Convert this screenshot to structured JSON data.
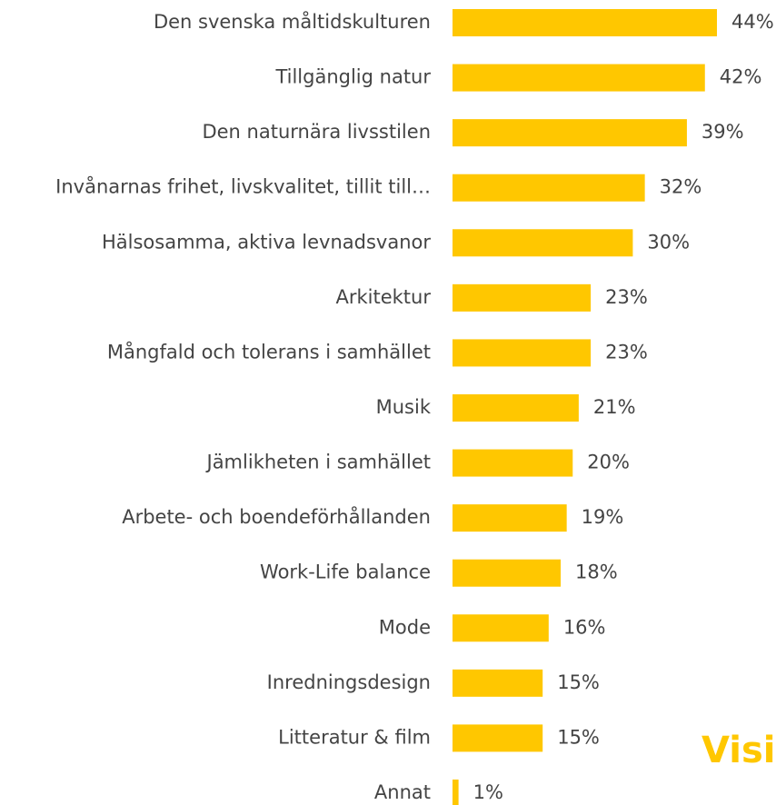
{
  "chart_data": {
    "type": "bar",
    "orientation": "horizontal",
    "categories": [
      "Den svenska måltidskulturen",
      "Tillgänglig natur",
      "Den naturnära livsstilen",
      "Invånarnas frihet, livskvalitet, tillit till…",
      "Hälsosamma, aktiva levnadsvanor",
      "Arkitektur",
      "Mångfald och tolerans i samhället",
      "Musik",
      "Jämlikheten i samhället",
      "Arbete- och boendeförhållanden",
      "Work-Life balance",
      "Mode",
      "Inredningsdesign",
      "Litteratur & film",
      "Annat"
    ],
    "values": [
      44,
      42,
      39,
      32,
      30,
      23,
      23,
      21,
      20,
      19,
      18,
      16,
      15,
      15,
      1
    ],
    "value_labels": [
      "44%",
      "42%",
      "39%",
      "32%",
      "30%",
      "23%",
      "23%",
      "21%",
      "20%",
      "19%",
      "18%",
      "16%",
      "15%",
      "15%",
      "1%"
    ],
    "color": "#ffc700",
    "xlim": [
      0,
      44
    ],
    "annotation": "Visi"
  }
}
